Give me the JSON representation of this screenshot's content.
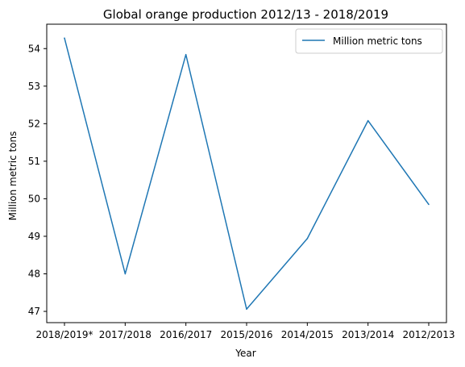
{
  "chart_data": {
    "type": "line",
    "title": "Global orange production 2012/13 - 2018/2019",
    "xlabel": "Year",
    "ylabel": "Million metric tons",
    "categories": [
      "2018/2019*",
      "2017/2018",
      "2016/2017",
      "2015/2016",
      "2014/2015",
      "2013/2014",
      "2012/2013"
    ],
    "series": [
      {
        "name": "Million metric tons",
        "color": "#1f77b4",
        "values": [
          54.28,
          48.0,
          53.84,
          47.06,
          48.94,
          52.08,
          49.85
        ]
      }
    ],
    "ylim": [
      46.7,
      54.65
    ],
    "yticks": [
      47,
      48,
      49,
      50,
      51,
      52,
      53,
      54
    ],
    "grid": false,
    "legend_position": "top-right"
  }
}
